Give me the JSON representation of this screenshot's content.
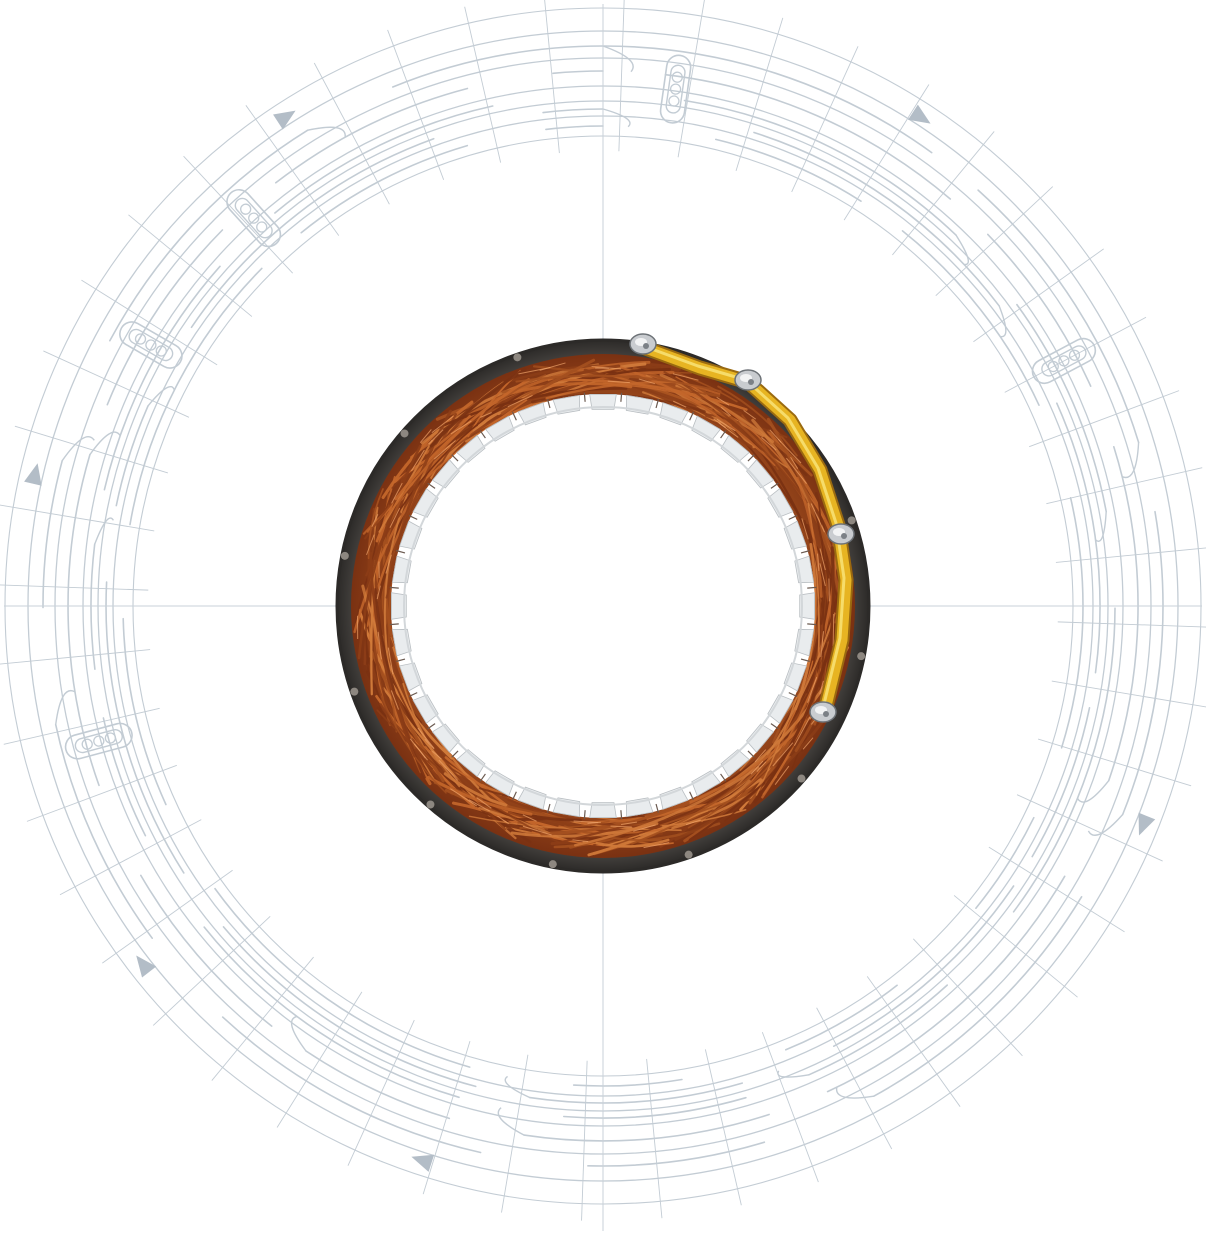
{
  "colors": {
    "background": "#ffffff",
    "schematic_line": "#c3ccd4",
    "schematic_arrow": "#b3bdc7",
    "crosshair": "#c9d1d8",
    "stator_iron": "#4a4744",
    "stator_iron_edge": "#2c2a28",
    "copper_dark": "#7a3112",
    "copper_mid": "#a4501f",
    "copper_light": "#d07a3a",
    "slot_insulation": "#e9ecee",
    "lead_yellow": "#e7b422",
    "lead_yellow_light": "#f6dc6a",
    "terminal_silver": "#c9ccd0"
  },
  "schematic": {
    "direction_arrows": 6,
    "coil_groups": 5,
    "radial_divisions": 48
  },
  "stator": {
    "slots": 36,
    "lead_wire": "yellow",
    "terminals": 4
  },
  "icons": {
    "direction_arrow": "triangle-arrow-icon",
    "terminal": "crimp-terminal-icon"
  }
}
